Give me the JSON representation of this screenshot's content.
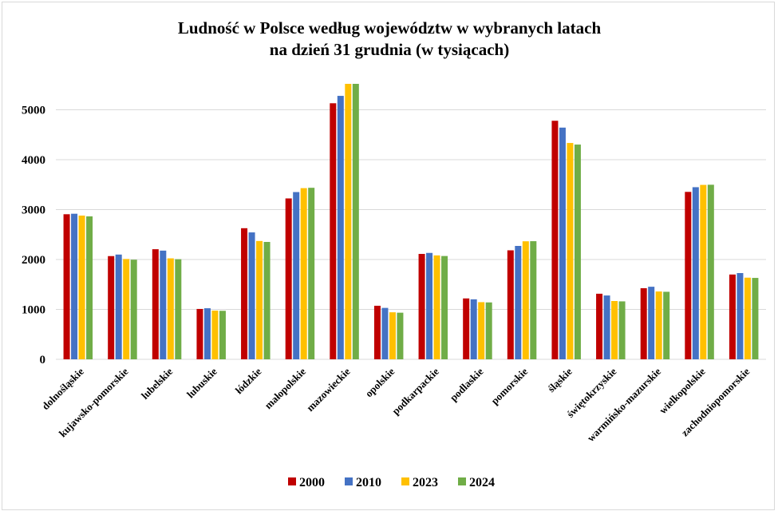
{
  "chart_data": {
    "type": "bar",
    "title": "Ludność w Polsce według województw w wybranych latach",
    "subtitle": "na dzień 31 grudnia (w tysiącach)",
    "xlabel": "",
    "ylabel": "",
    "ylim": [
      0,
      5500
    ],
    "yticks": [
      0,
      1000,
      2000,
      3000,
      4000,
      5000
    ],
    "grid": true,
    "legend_position": "bottom",
    "categories": [
      "dolnośląskie",
      "kujawsko-pomorskie",
      "lubelskie",
      "lubuskie",
      "łódzkie",
      "małopolskie",
      "mazowieckie",
      "opolskie",
      "podkarpackie",
      "podlaskie",
      "pomorskie",
      "śląskie",
      "świętokrzyskie",
      "warmińsko-mazurskie",
      "wielkopolskie",
      "zachodniopomorskie"
    ],
    "series": [
      {
        "name": "2000",
        "color": "#c00000",
        "values": [
          2907,
          2068,
          2206,
          1009,
          2627,
          3224,
          5131,
          1073,
          2112,
          1220,
          2184,
          4780,
          1314,
          1425,
          3355,
          1699
        ]
      },
      {
        "name": "2010",
        "color": "#4472c4",
        "values": [
          2917,
          2099,
          2178,
          1023,
          2543,
          3351,
          5279,
          1030,
          2132,
          1202,
          2272,
          4643,
          1279,
          1454,
          3449,
          1728
        ]
      },
      {
        "name": "2023",
        "color": "#ffc000",
        "values": [
          2880,
          2010,
          2023,
          976,
          2371,
          3430,
          5520,
          942,
          2082,
          1145,
          2365,
          4335,
          1168,
          1359,
          3495,
          1636
        ]
      },
      {
        "name": "2024",
        "color": "#70ad47",
        "values": [
          2864,
          1996,
          2006,
          972,
          2352,
          3437,
          5520,
          934,
          2070,
          1140,
          2367,
          4303,
          1161,
          1353,
          3498,
          1631
        ]
      }
    ]
  }
}
